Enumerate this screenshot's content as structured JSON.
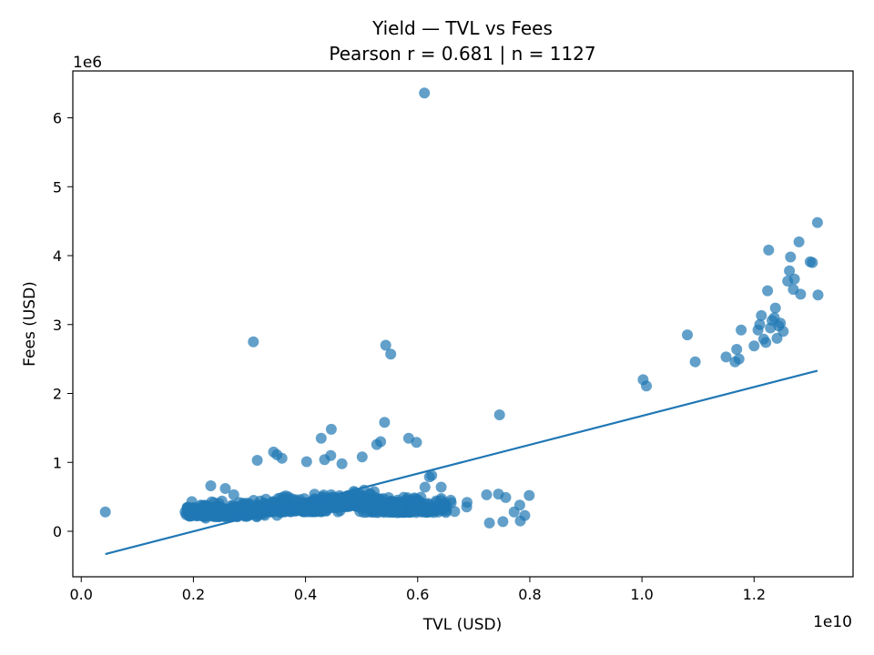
{
  "chart_data": {
    "type": "scatter",
    "title": "Yield — TVL vs Fees",
    "subtitle": "Pearson r = 0.681 | n = 1127",
    "xlabel": "TVL (USD)",
    "ylabel": "Fees (USD)",
    "x_offset_label": "1e10",
    "y_offset_label": "1e6",
    "x_scale": 10000000000,
    "y_scale": 1000000,
    "xlim": [
      -0.015,
      1.3765
    ],
    "ylim": [
      -0.66,
      6.68
    ],
    "x_ticks": [
      0.0,
      0.2,
      0.4,
      0.6,
      0.8,
      1.0,
      1.2
    ],
    "x_tick_labels": [
      "0.0",
      "0.2",
      "0.4",
      "0.6",
      "0.8",
      "1.0",
      "1.2"
    ],
    "y_ticks": [
      0,
      1,
      2,
      3,
      4,
      5,
      6
    ],
    "y_tick_labels": [
      "0",
      "1",
      "2",
      "3",
      "4",
      "5",
      "6"
    ],
    "grid": false,
    "legend": "none",
    "point_color": "#1f77b4",
    "line_color": "#1f77b4",
    "point_alpha": 0.7,
    "trend_line": {
      "x": [
        0.043,
        1.313
      ],
      "y": [
        -0.33,
        2.33
      ]
    },
    "points": [
      [
        0.043,
        0.28
      ],
      [
        0.612,
        6.36
      ],
      [
        0.307,
        2.75
      ],
      [
        0.543,
        2.7
      ],
      [
        0.552,
        2.57
      ],
      [
        0.746,
        1.69
      ],
      [
        0.446,
        1.48
      ],
      [
        0.541,
        1.58
      ],
      [
        0.428,
        1.35
      ],
      [
        0.584,
        1.35
      ],
      [
        0.598,
        1.29
      ],
      [
        0.343,
        1.15
      ],
      [
        0.349,
        1.11
      ],
      [
        0.358,
        1.06
      ],
      [
        0.402,
        1.01
      ],
      [
        0.445,
        1.1
      ],
      [
        0.501,
        1.08
      ],
      [
        0.527,
        1.26
      ],
      [
        0.534,
        1.3
      ],
      [
        0.314,
        1.03
      ],
      [
        0.434,
        1.04
      ],
      [
        0.465,
        0.98
      ],
      [
        0.621,
        0.79
      ],
      [
        0.625,
        0.81
      ],
      [
        0.613,
        0.64
      ],
      [
        0.642,
        0.64
      ],
      [
        0.659,
        0.45
      ],
      [
        0.688,
        0.42
      ],
      [
        0.723,
        0.53
      ],
      [
        0.744,
        0.54
      ],
      [
        0.757,
        0.49
      ],
      [
        0.772,
        0.28
      ],
      [
        0.782,
        0.38
      ],
      [
        0.791,
        0.23
      ],
      [
        0.799,
        0.52
      ],
      [
        0.783,
        0.15
      ],
      [
        0.752,
        0.14
      ],
      [
        0.728,
        0.12
      ],
      [
        0.231,
        0.66
      ],
      [
        0.257,
        0.62
      ],
      [
        0.272,
        0.53
      ],
      [
        0.189,
        0.3
      ],
      [
        0.197,
        0.22
      ],
      [
        0.213,
        0.38
      ],
      [
        0.236,
        0.27
      ],
      [
        0.251,
        0.44
      ],
      [
        0.222,
        0.19
      ],
      [
        0.244,
        0.21
      ],
      [
        0.262,
        0.31
      ],
      [
        0.284,
        0.24
      ],
      [
        1.002,
        2.2
      ],
      [
        1.008,
        2.11
      ],
      [
        1.081,
        2.85
      ],
      [
        1.095,
        2.46
      ],
      [
        1.15,
        2.53
      ],
      [
        1.166,
        2.46
      ],
      [
        1.169,
        2.64
      ],
      [
        1.173,
        2.5
      ],
      [
        1.177,
        2.92
      ],
      [
        1.2,
        2.69
      ],
      [
        1.207,
        2.92
      ],
      [
        1.21,
        3.0
      ],
      [
        1.213,
        3.13
      ],
      [
        1.217,
        2.79
      ],
      [
        1.221,
        2.74
      ],
      [
        1.224,
        3.49
      ],
      [
        1.226,
        4.08
      ],
      [
        1.229,
        2.95
      ],
      [
        1.232,
        3.06
      ],
      [
        1.236,
        3.1
      ],
      [
        1.238,
        3.24
      ],
      [
        1.241,
        2.8
      ],
      [
        1.244,
        2.98
      ],
      [
        1.247,
        3.02
      ],
      [
        1.252,
        2.9
      ],
      [
        1.26,
        3.63
      ],
      [
        1.263,
        3.78
      ],
      [
        1.265,
        3.98
      ],
      [
        1.27,
        3.51
      ],
      [
        1.272,
        3.66
      ],
      [
        1.28,
        4.2
      ],
      [
        1.283,
        3.44
      ],
      [
        1.3,
        3.91
      ],
      [
        1.304,
        3.9
      ],
      [
        1.313,
        4.48
      ],
      [
        1.314,
        3.43
      ]
    ],
    "cluster": {
      "description": "dense bulk of the n = 1127 points",
      "centers": [
        [
          0.375,
          0.33
        ],
        [
          0.48,
          0.4
        ],
        [
          0.25,
          0.26
        ],
        [
          0.58,
          0.32
        ]
      ]
    }
  }
}
